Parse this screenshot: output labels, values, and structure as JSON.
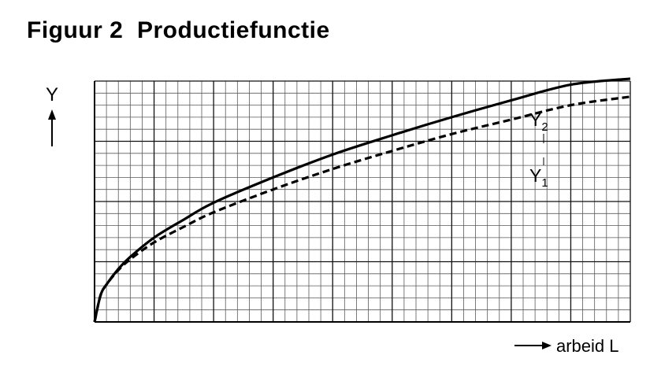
{
  "figure": {
    "title": "Figuur 2  Productiefunctie"
  },
  "chart_data": {
    "type": "line",
    "title": "Figuur 2  Productiefunctie",
    "ylabel": "Y",
    "xlabel": "arbeid L",
    "xlim": [
      0,
      45
    ],
    "ylim": [
      0,
      20
    ],
    "grid": true,
    "major_grid": {
      "x_every": 5,
      "y_every": 5
    },
    "minor_grid": {
      "x_every": 1,
      "y_every": 1
    },
    "series": [
      {
        "name": "Y2",
        "label_main": "Y",
        "label_sub": "2",
        "style": "solid",
        "color": "#000000",
        "x": [
          0,
          0.5,
          1,
          2,
          3,
          5,
          7.5,
          10,
          15,
          20,
          25,
          30,
          35,
          40,
          45
        ],
        "y": [
          0,
          2.2,
          3.1,
          4.4,
          5.4,
          7.0,
          8.5,
          9.9,
          12.0,
          13.9,
          15.5,
          17.0,
          18.4,
          19.7,
          20.2
        ]
      },
      {
        "name": "Y1",
        "label_main": "Y",
        "label_sub": "1",
        "style": "dashed",
        "color": "#000000",
        "x": [
          0,
          0.5,
          1,
          2,
          3,
          5,
          7.5,
          10,
          15,
          20,
          25,
          30,
          35,
          40,
          45
        ],
        "y": [
          0,
          2.2,
          3.1,
          4.3,
          5.2,
          6.6,
          7.9,
          9.1,
          11.0,
          12.7,
          14.2,
          15.6,
          16.8,
          18.0,
          18.7
        ]
      }
    ]
  }
}
